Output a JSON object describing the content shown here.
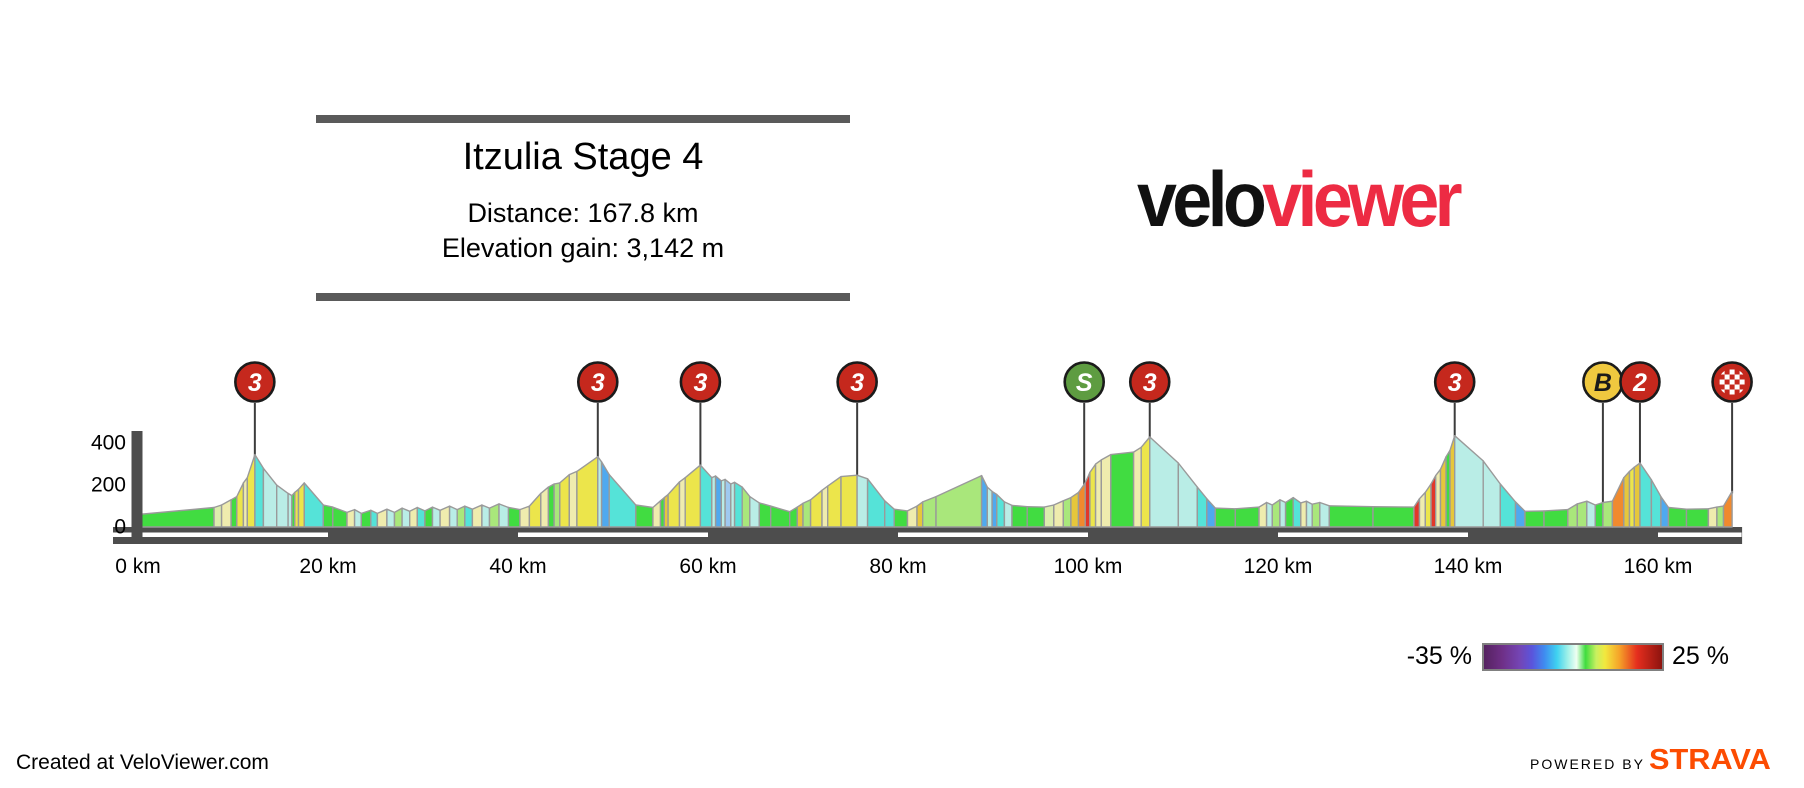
{
  "title_block": {
    "title": "Itzulia Stage 4",
    "distance_label": "Distance: 167.8 km",
    "elevation_label": "Elevation gain: 3,142 m"
  },
  "logo": {
    "part1": "velo",
    "part2": "viewer",
    "part1_color": "#111111",
    "part2_color": "#ED2B43"
  },
  "legend": {
    "min_label": "-35 %",
    "max_label": "25 %",
    "gradient_stops": [
      [
        0,
        "#552260"
      ],
      [
        10,
        "#6E2F86"
      ],
      [
        20,
        "#7445B4"
      ],
      [
        27,
        "#5A55DC"
      ],
      [
        34,
        "#3F8CF0"
      ],
      [
        41,
        "#3FD2F0"
      ],
      [
        47,
        "#9FF0E8"
      ],
      [
        52,
        "#EFFFF2"
      ],
      [
        57,
        "#3FDC3F"
      ],
      [
        63,
        "#C8F060"
      ],
      [
        68,
        "#F2E83E"
      ],
      [
        76,
        "#F5A329"
      ],
      [
        86,
        "#E52E1E"
      ],
      [
        100,
        "#8C130E"
      ]
    ]
  },
  "footer": {
    "credit": "Created at VeloViewer.com",
    "powered_by": "POWERED BY",
    "strava": "STRAVA",
    "strava_color": "#FC4C02"
  },
  "chart_data": {
    "type": "area",
    "title": "Itzulia Stage 4",
    "distance_km": 167.8,
    "elevation_gain_m": 3142,
    "xlim": [
      0,
      167.8
    ],
    "ylim": [
      0,
      450
    ],
    "grid": false,
    "x_ticks": [
      {
        "km": 0,
        "label": "0 km"
      },
      {
        "km": 20,
        "label": "20 km"
      },
      {
        "km": 40,
        "label": "40 km"
      },
      {
        "km": 60,
        "label": "60 km"
      },
      {
        "km": 80,
        "label": "80 km"
      },
      {
        "km": 100,
        "label": "100 km"
      },
      {
        "km": 120,
        "label": "120 km"
      },
      {
        "km": 140,
        "label": "140 km"
      },
      {
        "km": 160,
        "label": "160 km"
      }
    ],
    "y_ticks": [
      {
        "m": 0,
        "label": "0"
      },
      {
        "m": 200,
        "label": "200"
      },
      {
        "m": 400,
        "label": "400"
      }
    ],
    "palette": {
      "G": "#41DC41",
      "LG": "#A9E77B",
      "PYG": "#DCEDAD",
      "PY": "#EFECAE",
      "Y": "#ECE54B",
      "DY": "#E6C73B",
      "O": "#F08A2E",
      "R": "#E2372A",
      "C": "#55E3D8",
      "PC": "#B9EDE6",
      "B": "#4FA9EF",
      "LB": "#9FC9F0"
    },
    "marker_styles": {
      "cat3": {
        "fill": "#C5281D",
        "text": "#FFFFFF"
      },
      "cat2": {
        "fill": "#C5281D",
        "text": "#FFFFFF"
      },
      "sprint": {
        "fill": "#5E9C41",
        "text": "#FFFFFF"
      },
      "bonus": {
        "fill": "#EFC83F",
        "text": "#1A1A1A"
      },
      "finish": {
        "fill": "#C5281D",
        "text": "#FFFFFF"
      }
    },
    "markers": [
      {
        "type": "cat3",
        "label": "3",
        "km": 12.3,
        "elev": 340
      },
      {
        "type": "cat3",
        "label": "3",
        "km": 48.4,
        "elev": 330
      },
      {
        "type": "cat3",
        "label": "3",
        "km": 59.2,
        "elev": 290
      },
      {
        "type": "cat3",
        "label": "3",
        "km": 75.7,
        "elev": 242
      },
      {
        "type": "sprint",
        "label": "S",
        "km": 99.6,
        "elev": 198
      },
      {
        "type": "cat3",
        "label": "3",
        "km": 106.5,
        "elev": 424
      },
      {
        "type": "cat3",
        "label": "3",
        "km": 138.6,
        "elev": 430
      },
      {
        "type": "bonus",
        "label": "B",
        "km": 154.2,
        "elev": 112
      },
      {
        "type": "cat2",
        "label": "2",
        "km": 158.1,
        "elev": 300
      },
      {
        "type": "finish",
        "label": "",
        "km": 167.8,
        "elev": 165
      }
    ],
    "rug_bands_km": [
      [
        0,
        20
      ],
      [
        40,
        60
      ],
      [
        80,
        100
      ],
      [
        120,
        140
      ],
      [
        160,
        168.8
      ]
    ],
    "segments": [
      [
        0,
        55,
        8,
        88,
        "G"
      ],
      [
        8,
        88,
        8.8,
        100,
        "PYG"
      ],
      [
        8.8,
        100,
        9.8,
        125,
        "PY"
      ],
      [
        9.8,
        125,
        10.4,
        140,
        "G"
      ],
      [
        10.4,
        140,
        11.1,
        205,
        "Y"
      ],
      [
        11.1,
        205,
        11.5,
        230,
        "PY"
      ],
      [
        11.5,
        230,
        12.3,
        340,
        "Y"
      ],
      [
        12.3,
        340,
        13.2,
        275,
        "C"
      ],
      [
        13.2,
        275,
        14.6,
        195,
        "PC"
      ],
      [
        14.6,
        195,
        15.8,
        155,
        "PC"
      ],
      [
        15.8,
        155,
        16.2,
        145,
        "PC"
      ],
      [
        16.2,
        145,
        16.5,
        160,
        "G"
      ],
      [
        16.5,
        160,
        16.9,
        175,
        "Y"
      ],
      [
        16.9,
        175,
        17.5,
        205,
        "Y"
      ],
      [
        17.5,
        205,
        19.5,
        100,
        "C"
      ],
      [
        19.5,
        100,
        20.5,
        90,
        "G"
      ],
      [
        20.5,
        90,
        22,
        65,
        "G"
      ],
      [
        22,
        65,
        22.8,
        78,
        "PY"
      ],
      [
        22.8,
        78,
        23.5,
        60,
        "PC"
      ],
      [
        23.5,
        60,
        24.5,
        75,
        "G"
      ],
      [
        24.5,
        75,
        25.2,
        60,
        "C"
      ],
      [
        25.2,
        60,
        26.2,
        80,
        "PY"
      ],
      [
        26.2,
        80,
        27,
        65,
        "PC"
      ],
      [
        27,
        65,
        27.8,
        85,
        "LG"
      ],
      [
        27.8,
        85,
        28.6,
        70,
        "PC"
      ],
      [
        28.6,
        70,
        29.4,
        88,
        "PY"
      ],
      [
        29.4,
        88,
        30.2,
        72,
        "C"
      ],
      [
        30.2,
        72,
        31,
        90,
        "G"
      ],
      [
        31,
        90,
        31.8,
        75,
        "PC"
      ],
      [
        31.8,
        75,
        32.8,
        95,
        "PY"
      ],
      [
        32.8,
        95,
        33.6,
        78,
        "PC"
      ],
      [
        33.6,
        78,
        34.4,
        95,
        "LG"
      ],
      [
        34.4,
        95,
        35.2,
        80,
        "C"
      ],
      [
        35.2,
        80,
        36.2,
        100,
        "PY"
      ],
      [
        36.2,
        100,
        37,
        85,
        "PC"
      ],
      [
        37,
        85,
        38,
        105,
        "LG"
      ],
      [
        38,
        105,
        39,
        88,
        "PC"
      ],
      [
        39,
        88,
        40.2,
        78,
        "G"
      ],
      [
        40.2,
        78,
        41.2,
        95,
        "PY"
      ],
      [
        41.2,
        95,
        42.4,
        155,
        "Y"
      ],
      [
        42.4,
        155,
        43.2,
        185,
        "PY"
      ],
      [
        43.2,
        185,
        43.8,
        200,
        "G"
      ],
      [
        43.8,
        200,
        44.4,
        205,
        "LG"
      ],
      [
        44.4,
        205,
        45.4,
        245,
        "Y"
      ],
      [
        45.4,
        245,
        46.2,
        260,
        "PY"
      ],
      [
        46.2,
        260,
        48.4,
        330,
        "Y"
      ],
      [
        48.4,
        330,
        48.8,
        305,
        "PC"
      ],
      [
        48.8,
        305,
        49.6,
        245,
        "B"
      ],
      [
        49.6,
        245,
        52.4,
        100,
        "C"
      ],
      [
        52.4,
        100,
        54.2,
        88,
        "G"
      ],
      [
        54.2,
        88,
        55,
        120,
        "PY"
      ],
      [
        55,
        120,
        55.4,
        135,
        "G"
      ],
      [
        55.4,
        135,
        55.8,
        150,
        "DY"
      ],
      [
        55.8,
        150,
        57,
        210,
        "Y"
      ],
      [
        57,
        210,
        57.6,
        230,
        "PY"
      ],
      [
        57.6,
        230,
        59.2,
        290,
        "Y"
      ],
      [
        59.2,
        290,
        60.4,
        230,
        "C"
      ],
      [
        60.4,
        230,
        60.8,
        238,
        "PC"
      ],
      [
        60.8,
        238,
        61.4,
        215,
        "B"
      ],
      [
        61.4,
        215,
        61.8,
        222,
        "PC"
      ],
      [
        61.8,
        222,
        62.4,
        200,
        "LB"
      ],
      [
        62.4,
        200,
        62.8,
        208,
        "PC"
      ],
      [
        62.8,
        208,
        63.6,
        185,
        "C"
      ],
      [
        63.6,
        185,
        64.4,
        140,
        "LG"
      ],
      [
        64.4,
        140,
        65.4,
        110,
        "PC"
      ],
      [
        65.4,
        110,
        66.6,
        95,
        "G"
      ],
      [
        66.6,
        95,
        68.6,
        68,
        "G"
      ],
      [
        68.6,
        68,
        69.4,
        90,
        "G"
      ],
      [
        69.4,
        90,
        70,
        108,
        "DY"
      ],
      [
        70,
        108,
        70.8,
        125,
        "LG"
      ],
      [
        70.8,
        125,
        72,
        170,
        "Y"
      ],
      [
        72,
        170,
        72.6,
        190,
        "PY"
      ],
      [
        72.6,
        190,
        74,
        235,
        "Y"
      ],
      [
        74,
        235,
        75.7,
        242,
        "Y"
      ],
      [
        75.7,
        242,
        76.8,
        225,
        "PC"
      ],
      [
        76.8,
        225,
        78.6,
        120,
        "C"
      ],
      [
        78.6,
        120,
        79.6,
        80,
        "C"
      ],
      [
        79.6,
        80,
        81,
        72,
        "G"
      ],
      [
        81,
        72,
        82,
        95,
        "PY"
      ],
      [
        82,
        95,
        82.6,
        115,
        "DY"
      ],
      [
        82.6,
        115,
        84,
        140,
        "LG"
      ],
      [
        84,
        140,
        88.8,
        240,
        "LG"
      ],
      [
        88.8,
        240,
        89.4,
        185,
        "B"
      ],
      [
        89.4,
        185,
        89.9,
        165,
        "PC"
      ],
      [
        89.9,
        165,
        90.4,
        150,
        "B"
      ],
      [
        90.4,
        150,
        91.2,
        115,
        "C"
      ],
      [
        91.2,
        115,
        92,
        98,
        "PC"
      ],
      [
        92,
        98,
        93.6,
        92,
        "G"
      ],
      [
        93.6,
        92,
        95.4,
        90,
        "G"
      ],
      [
        95.4,
        90,
        96.4,
        100,
        "PYG"
      ],
      [
        96.4,
        100,
        97.4,
        120,
        "PY"
      ],
      [
        97.4,
        120,
        98.2,
        135,
        "LG"
      ],
      [
        98.2,
        135,
        99,
        160,
        "DY"
      ],
      [
        99,
        160,
        99.7,
        205,
        "O"
      ],
      [
        99.7,
        205,
        100.2,
        255,
        "R"
      ],
      [
        100.2,
        255,
        100.8,
        295,
        "Y"
      ],
      [
        100.8,
        295,
        101.4,
        315,
        "PY"
      ],
      [
        101.4,
        315,
        102.4,
        340,
        "PY"
      ],
      [
        102.4,
        340,
        104.8,
        352,
        "G"
      ],
      [
        104.8,
        352,
        105.6,
        375,
        "PY"
      ],
      [
        105.6,
        375,
        106.5,
        424,
        "Y"
      ],
      [
        106.5,
        424,
        109.5,
        300,
        "PC"
      ],
      [
        109.5,
        300,
        111.5,
        185,
        "PC"
      ],
      [
        111.5,
        185,
        112.5,
        130,
        "C"
      ],
      [
        112.5,
        130,
        113.4,
        85,
        "B"
      ],
      [
        113.4,
        85,
        115.5,
        82,
        "G"
      ],
      [
        115.5,
        82,
        118,
        90,
        "G"
      ],
      [
        118,
        90,
        118.8,
        112,
        "PY"
      ],
      [
        118.8,
        112,
        119.4,
        100,
        "PC"
      ],
      [
        119.4,
        100,
        120.2,
        125,
        "LG"
      ],
      [
        120.2,
        125,
        120.8,
        112,
        "PC"
      ],
      [
        120.8,
        112,
        121.6,
        135,
        "G"
      ],
      [
        121.6,
        135,
        122.4,
        110,
        "C"
      ],
      [
        122.4,
        110,
        123,
        118,
        "PY"
      ],
      [
        123,
        118,
        123.6,
        104,
        "PC"
      ],
      [
        123.6,
        104,
        124.4,
        112,
        "LG"
      ],
      [
        124.4,
        112,
        125.4,
        96,
        "PC"
      ],
      [
        125.4,
        96,
        130,
        92,
        "G"
      ],
      [
        130,
        92,
        134.3,
        90,
        "G"
      ],
      [
        134.3,
        90,
        134.9,
        130,
        "R"
      ],
      [
        134.9,
        130,
        135.5,
        160,
        "PY"
      ],
      [
        135.5,
        160,
        136.1,
        200,
        "Y"
      ],
      [
        136.1,
        200,
        136.6,
        240,
        "R"
      ],
      [
        136.6,
        240,
        137.1,
        270,
        "PY"
      ],
      [
        137.1,
        270,
        137.7,
        330,
        "DY"
      ],
      [
        137.7,
        330,
        138.1,
        360,
        "G"
      ],
      [
        138.1,
        360,
        138.6,
        430,
        "DY"
      ],
      [
        138.6,
        430,
        141.6,
        310,
        "PC"
      ],
      [
        141.6,
        310,
        143.4,
        200,
        "PC"
      ],
      [
        143.4,
        200,
        145,
        115,
        "C"
      ],
      [
        145,
        115,
        146,
        70,
        "B"
      ],
      [
        146,
        70,
        148,
        72,
        "G"
      ],
      [
        148,
        72,
        150.5,
        78,
        "G"
      ],
      [
        150.5,
        78,
        151.5,
        105,
        "LG"
      ],
      [
        151.5,
        105,
        152.5,
        118,
        "LG"
      ],
      [
        152.5,
        118,
        153.4,
        100,
        "PC"
      ],
      [
        153.4,
        100,
        154.2,
        112,
        "G"
      ],
      [
        154.2,
        112,
        155.2,
        118,
        "LG"
      ],
      [
        155.2,
        118,
        156.4,
        230,
        "O"
      ],
      [
        156.4,
        230,
        157,
        260,
        "DY"
      ],
      [
        157,
        260,
        157.5,
        280,
        "Y"
      ],
      [
        157.5,
        280,
        158.1,
        300,
        "DY"
      ],
      [
        158.1,
        300,
        159.3,
        220,
        "C"
      ],
      [
        159.3,
        220,
        160.3,
        140,
        "C"
      ],
      [
        160.3,
        140,
        161.1,
        88,
        "B"
      ],
      [
        161.1,
        88,
        163,
        80,
        "G"
      ],
      [
        163,
        80,
        165.3,
        82,
        "G"
      ],
      [
        165.3,
        82,
        166.2,
        90,
        "PY"
      ],
      [
        166.2,
        90,
        166.9,
        95,
        "LG"
      ],
      [
        166.9,
        95,
        167.8,
        165,
        "O"
      ]
    ]
  }
}
